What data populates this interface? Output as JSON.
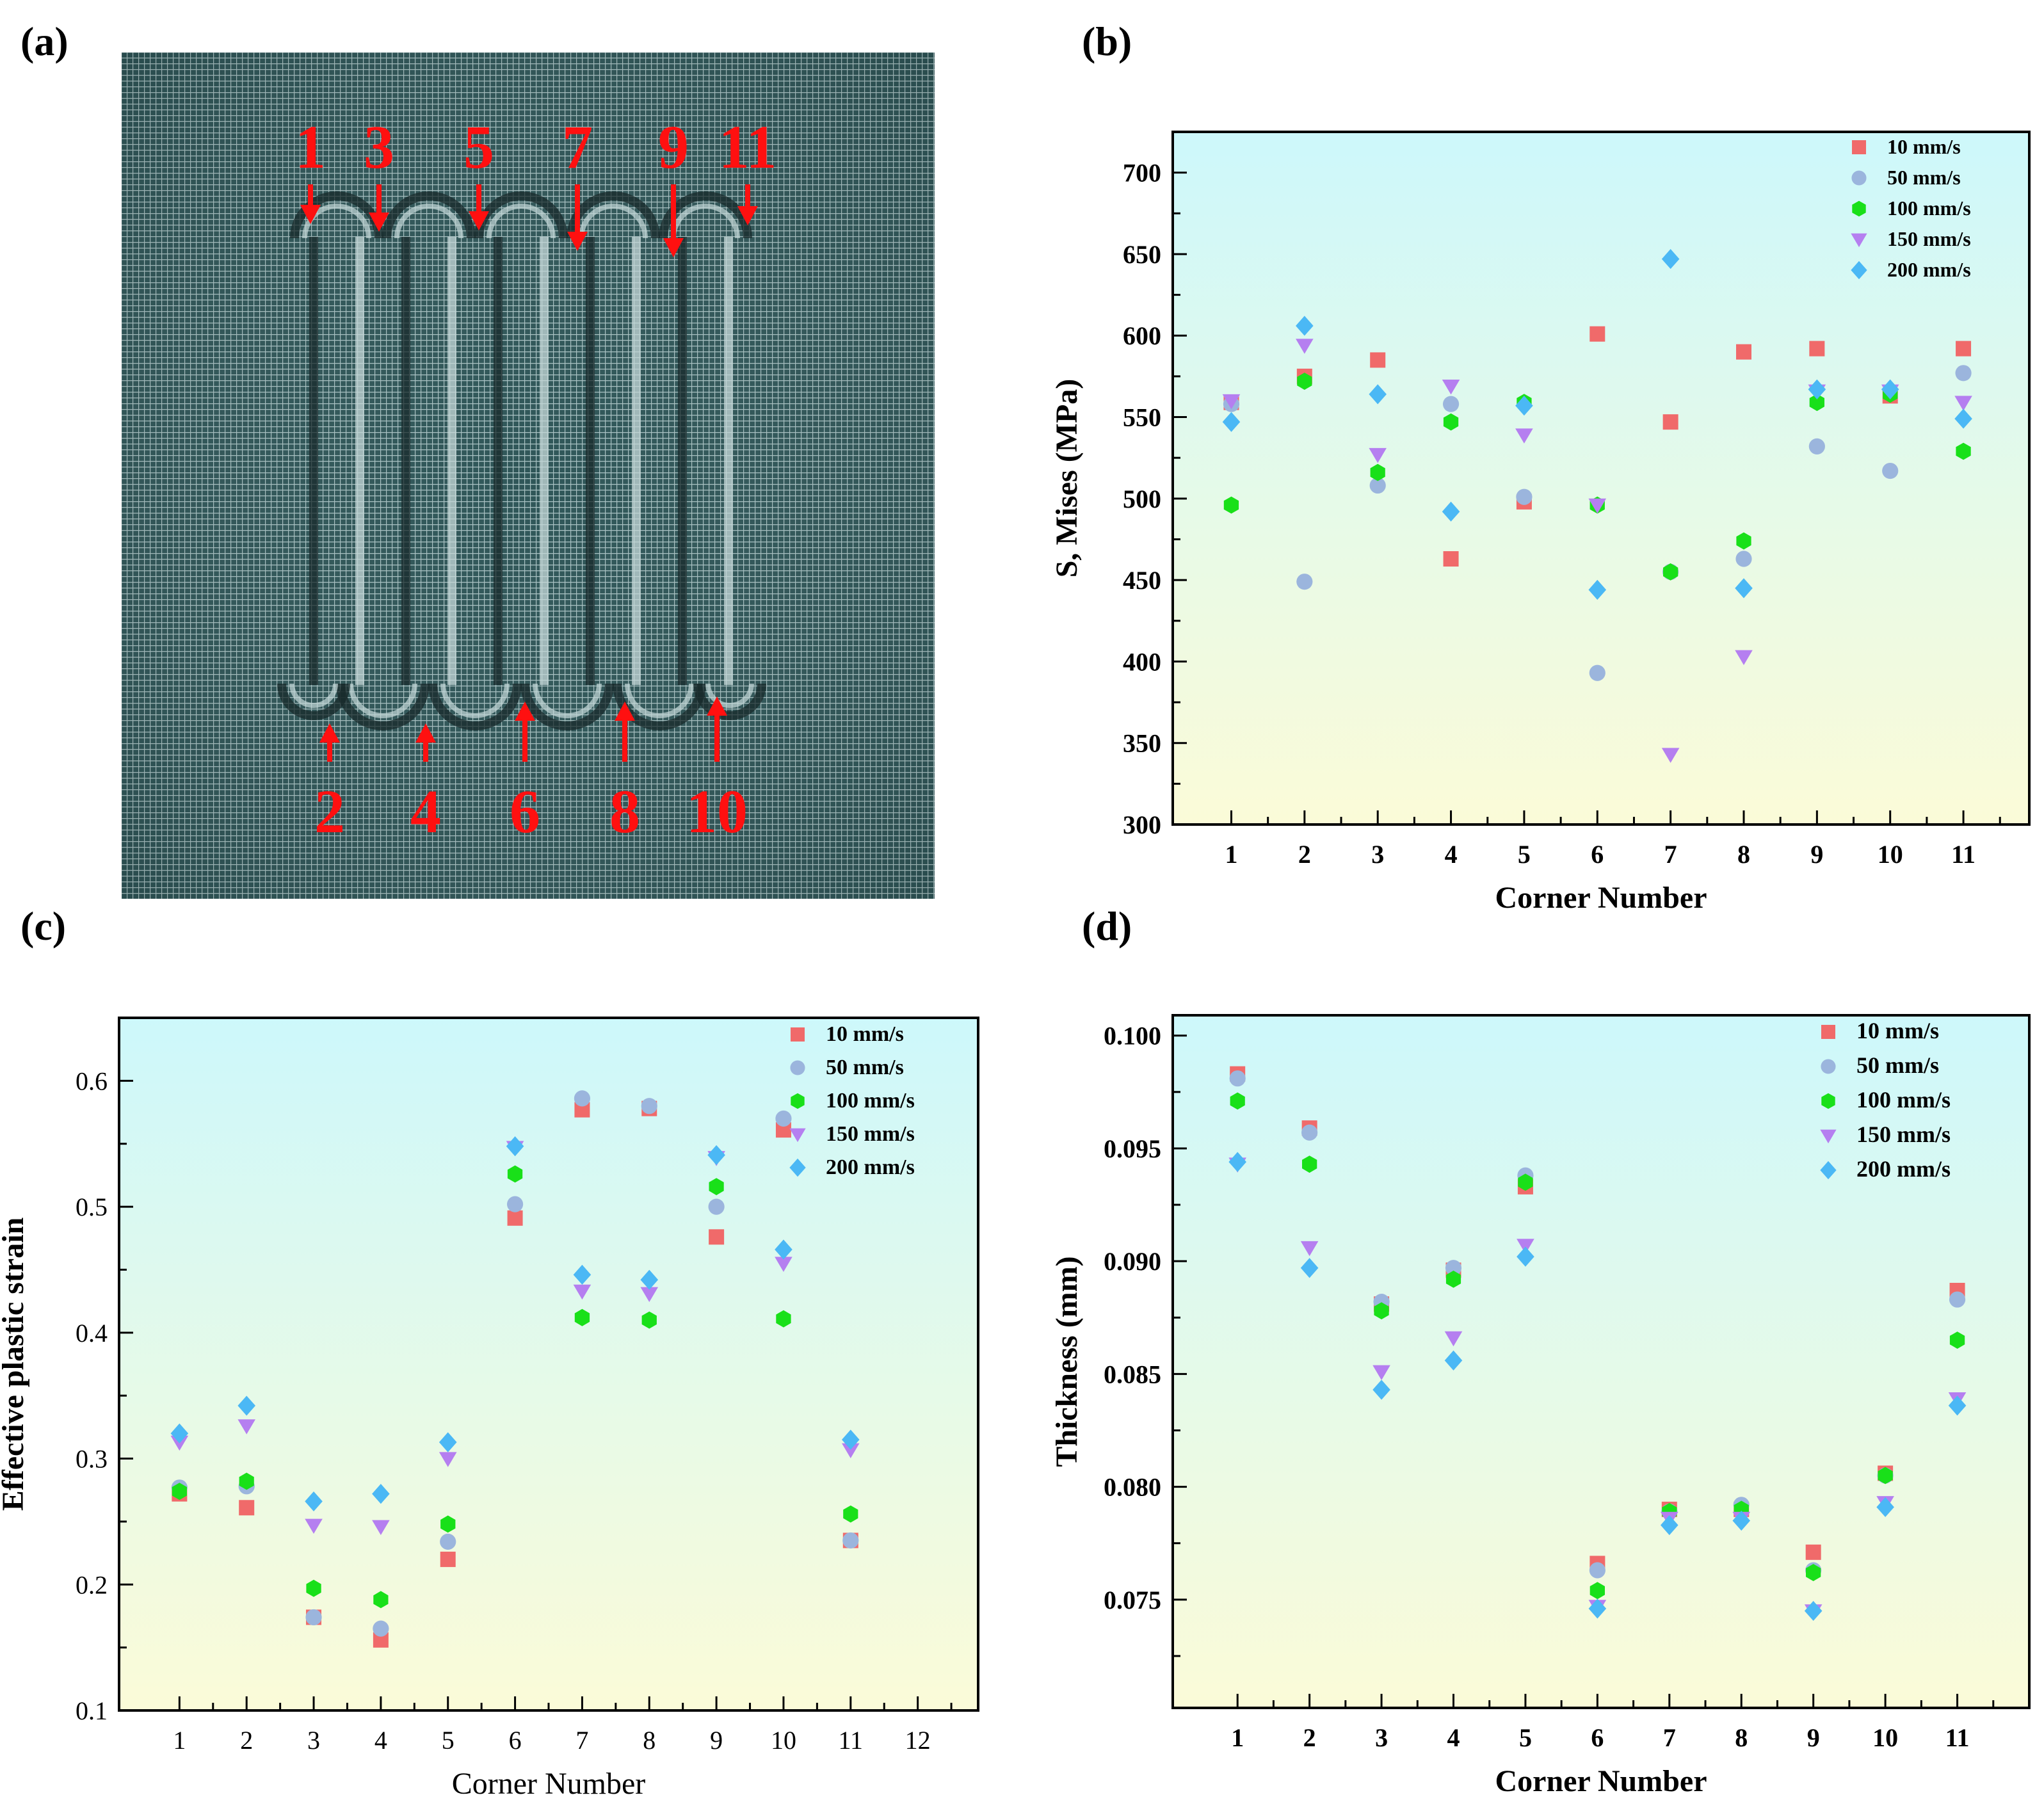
{
  "panel_labels": [
    "(a)",
    "(b)",
    "(c)",
    "(d)"
  ],
  "colors": {
    "s10": "#f06a6a",
    "s50": "#9bb5dd",
    "s100": "#19e019",
    "s150": "#b57ff0",
    "s200": "#4bb8f5",
    "marker": "#ff1010",
    "mesh": "#2f5658",
    "bg_top": "#cdf8fb",
    "bg_bottom": "#fbfbd8"
  },
  "mesh": {
    "top_labels": [
      "1",
      "3",
      "5",
      "7",
      "9",
      "11"
    ],
    "bottom_labels": [
      "2",
      "4",
      "6",
      "8",
      "10"
    ]
  },
  "chart_data": [
    {
      "id": "b",
      "type": "scatter",
      "xlabel": "Corner Number",
      "ylabel": "S, Mises (MPa)",
      "xlim": [
        0.2,
        11.9
      ],
      "ylim": [
        300,
        725
      ],
      "xticks": [
        1,
        2,
        3,
        4,
        5,
        6,
        7,
        8,
        9,
        10,
        11
      ],
      "yticks": [
        300,
        350,
        400,
        450,
        500,
        550,
        600,
        650,
        700
      ],
      "tick_format": "int",
      "legend": "top-right",
      "x": [
        1,
        2,
        3,
        4,
        5,
        6,
        7,
        8,
        9,
        10,
        11
      ],
      "series": [
        {
          "name": "10 mm/s",
          "marker": "square",
          "color": "#f06a6a",
          "values": [
            559,
            575,
            585,
            463,
            498,
            601,
            547,
            590,
            592,
            563,
            592
          ]
        },
        {
          "name": "50 mm/s",
          "marker": "circle",
          "color": "#9bb5dd",
          "values": [
            558,
            449,
            508,
            558,
            501,
            393,
            455,
            463,
            532,
            517,
            577
          ]
        },
        {
          "name": "100 mm/s",
          "marker": "hexagon",
          "color": "#19e019",
          "values": [
            496,
            572,
            516,
            547,
            559,
            496,
            455,
            474,
            559,
            564,
            529
          ]
        },
        {
          "name": "150 mm/s",
          "marker": "triangle",
          "color": "#b57ff0",
          "values": [
            560,
            594,
            527,
            569,
            539,
            496,
            343,
            403,
            566,
            566,
            559
          ]
        },
        {
          "name": "200 mm/s",
          "marker": "diamond",
          "color": "#4bb8f5",
          "values": [
            547,
            606,
            564,
            492,
            557,
            444,
            647,
            445,
            567,
            567,
            549
          ]
        }
      ]
    },
    {
      "id": "c",
      "type": "scatter",
      "xlabel": "Corner Number",
      "ylabel": "Effective plastic strain",
      "xlim": [
        0.1,
        12.9
      ],
      "ylim": [
        0.1,
        0.65
      ],
      "xticks": [
        1,
        2,
        3,
        4,
        5,
        6,
        7,
        8,
        9,
        10,
        11,
        12
      ],
      "yticks": [
        0.1,
        0.2,
        0.3,
        0.4,
        0.5,
        0.6
      ],
      "tick_format": "1",
      "legend": "top-right",
      "x": [
        1,
        2,
        3,
        4,
        5,
        6,
        7,
        8,
        9,
        10,
        11
      ],
      "series": [
        {
          "name": "10 mm/s",
          "marker": "square",
          "color": "#f06a6a",
          "values": [
            0.272,
            0.261,
            0.174,
            0.156,
            0.22,
            0.491,
            0.577,
            0.578,
            0.476,
            0.561,
            0.235
          ]
        },
        {
          "name": "50 mm/s",
          "marker": "circle",
          "color": "#9bb5dd",
          "values": [
            0.277,
            0.278,
            0.174,
            0.165,
            0.234,
            0.502,
            0.586,
            0.58,
            0.5,
            0.57,
            0.235
          ]
        },
        {
          "name": "100 mm/s",
          "marker": "hexagon",
          "color": "#19e019",
          "values": [
            0.274,
            0.282,
            0.197,
            0.188,
            0.248,
            0.526,
            0.412,
            0.41,
            0.516,
            0.411,
            0.256
          ]
        },
        {
          "name": "150 mm/s",
          "marker": "triangle",
          "color": "#b57ff0",
          "values": [
            0.313,
            0.326,
            0.247,
            0.246,
            0.3,
            0.547,
            0.433,
            0.431,
            0.539,
            0.455,
            0.307
          ]
        },
        {
          "name": "200 mm/s",
          "marker": "diamond",
          "color": "#4bb8f5",
          "values": [
            0.32,
            0.342,
            0.266,
            0.272,
            0.313,
            0.548,
            0.446,
            0.442,
            0.541,
            0.466,
            0.315
          ]
        }
      ]
    },
    {
      "id": "d",
      "type": "scatter",
      "xlabel": "Corner Number",
      "ylabel": "Thickness (mm)",
      "xlim": [
        0.1,
        12.0
      ],
      "ylim": [
        0.0702,
        0.1009
      ],
      "xticks": [
        1,
        2,
        3,
        4,
        5,
        6,
        7,
        8,
        9,
        10,
        11
      ],
      "yticks": [
        0.075,
        0.08,
        0.085,
        0.09,
        0.095,
        0.1
      ],
      "tick_format": "3",
      "legend": "top-right",
      "x": [
        1,
        2,
        3,
        4,
        5,
        6,
        7,
        8,
        9,
        10,
        11
      ],
      "series": [
        {
          "name": "10 mm/s",
          "marker": "square",
          "color": "#f06a6a",
          "values": [
            0.0983,
            0.0959,
            0.0881,
            0.0896,
            0.0933,
            0.0766,
            0.079,
            0.079,
            0.0771,
            0.0806,
            0.0887
          ]
        },
        {
          "name": "50 mm/s",
          "marker": "circle",
          "color": "#9bb5dd",
          "values": [
            0.0981,
            0.0957,
            0.0882,
            0.0897,
            0.0938,
            0.0763,
            0.0789,
            0.0792,
            0.0763,
            0.0805,
            0.0883
          ]
        },
        {
          "name": "100 mm/s",
          "marker": "hexagon",
          "color": "#19e019",
          "values": [
            0.0971,
            0.0943,
            0.0878,
            0.0892,
            0.0935,
            0.0754,
            0.0789,
            0.079,
            0.0762,
            0.0805,
            0.0865
          ]
        },
        {
          "name": "150 mm/s",
          "marker": "triangle",
          "color": "#b57ff0",
          "values": [
            0.0943,
            0.0906,
            0.0851,
            0.0866,
            0.0907,
            0.0747,
            0.0786,
            0.0786,
            0.0745,
            0.0793,
            0.0839
          ]
        },
        {
          "name": "200 mm/s",
          "marker": "diamond",
          "color": "#4bb8f5",
          "values": [
            0.0944,
            0.0897,
            0.0843,
            0.0856,
            0.0902,
            0.0746,
            0.0783,
            0.0785,
            0.0745,
            0.0791,
            0.0836
          ]
        }
      ]
    }
  ]
}
